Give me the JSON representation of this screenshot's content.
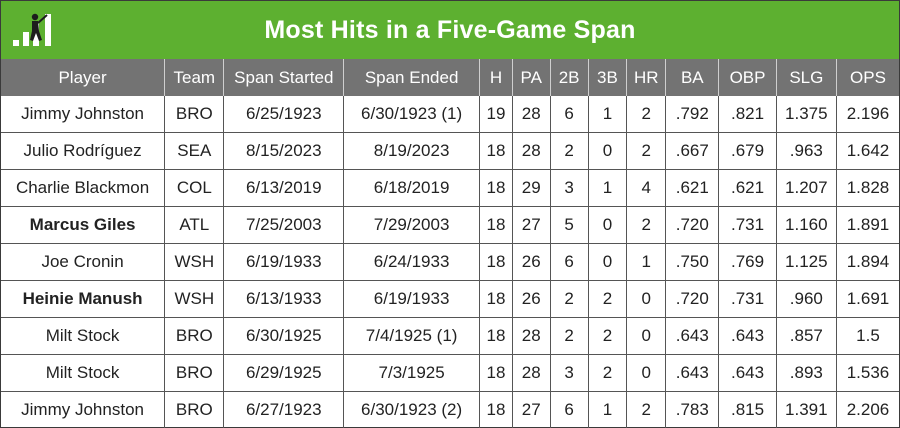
{
  "header": {
    "title": "Most Hits in a Five-Game Span",
    "logo_icon": "batter-bars-icon"
  },
  "columns": [
    "Player",
    "Team",
    "Span Started",
    "Span Ended",
    "H",
    "PA",
    "2B",
    "3B",
    "HR",
    "BA",
    "OBP",
    "SLG",
    "OPS"
  ],
  "rows": [
    {
      "player": "Jimmy Johnston",
      "bold": false,
      "cells": [
        "BRO",
        "6/25/1923",
        "6/30/1923 (1)",
        "19",
        "28",
        "6",
        "1",
        "2",
        ".792",
        ".821",
        "1.375",
        "2.196"
      ]
    },
    {
      "player": "Julio Rodríguez",
      "bold": false,
      "cells": [
        "SEA",
        "8/15/2023",
        "8/19/2023",
        "18",
        "28",
        "2",
        "0",
        "2",
        ".667",
        ".679",
        ".963",
        "1.642"
      ]
    },
    {
      "player": "Charlie Blackmon",
      "bold": false,
      "cells": [
        "COL",
        "6/13/2019",
        "6/18/2019",
        "18",
        "29",
        "3",
        "1",
        "4",
        ".621",
        ".621",
        "1.207",
        "1.828"
      ]
    },
    {
      "player": "Marcus Giles",
      "bold": true,
      "cells": [
        "ATL",
        "7/25/2003",
        "7/29/2003",
        "18",
        "27",
        "5",
        "0",
        "2",
        ".720",
        ".731",
        "1.160",
        "1.891"
      ]
    },
    {
      "player": "Joe Cronin",
      "bold": false,
      "cells": [
        "WSH",
        "6/19/1933",
        "6/24/1933",
        "18",
        "26",
        "6",
        "0",
        "1",
        ".750",
        ".769",
        "1.125",
        "1.894"
      ]
    },
    {
      "player": "Heinie Manush",
      "bold": true,
      "cells": [
        "WSH",
        "6/13/1933",
        "6/19/1933",
        "18",
        "26",
        "2",
        "2",
        "0",
        ".720",
        ".731",
        ".960",
        "1.691"
      ]
    },
    {
      "player": "Milt Stock",
      "bold": false,
      "cells": [
        "BRO",
        "6/30/1925",
        "7/4/1925 (1)",
        "18",
        "28",
        "2",
        "2",
        "0",
        ".643",
        ".643",
        ".857",
        "1.5"
      ]
    },
    {
      "player": "Milt Stock",
      "bold": false,
      "cells": [
        "BRO",
        "6/29/1925",
        "7/3/1925",
        "18",
        "28",
        "3",
        "2",
        "0",
        ".643",
        ".643",
        ".893",
        "1.536"
      ]
    },
    {
      "player": "Jimmy Johnston",
      "bold": false,
      "cells": [
        "BRO",
        "6/27/1923",
        "6/30/1923 (2)",
        "18",
        "27",
        "6",
        "1",
        "2",
        ".783",
        ".815",
        "1.391",
        "2.206"
      ]
    }
  ]
}
